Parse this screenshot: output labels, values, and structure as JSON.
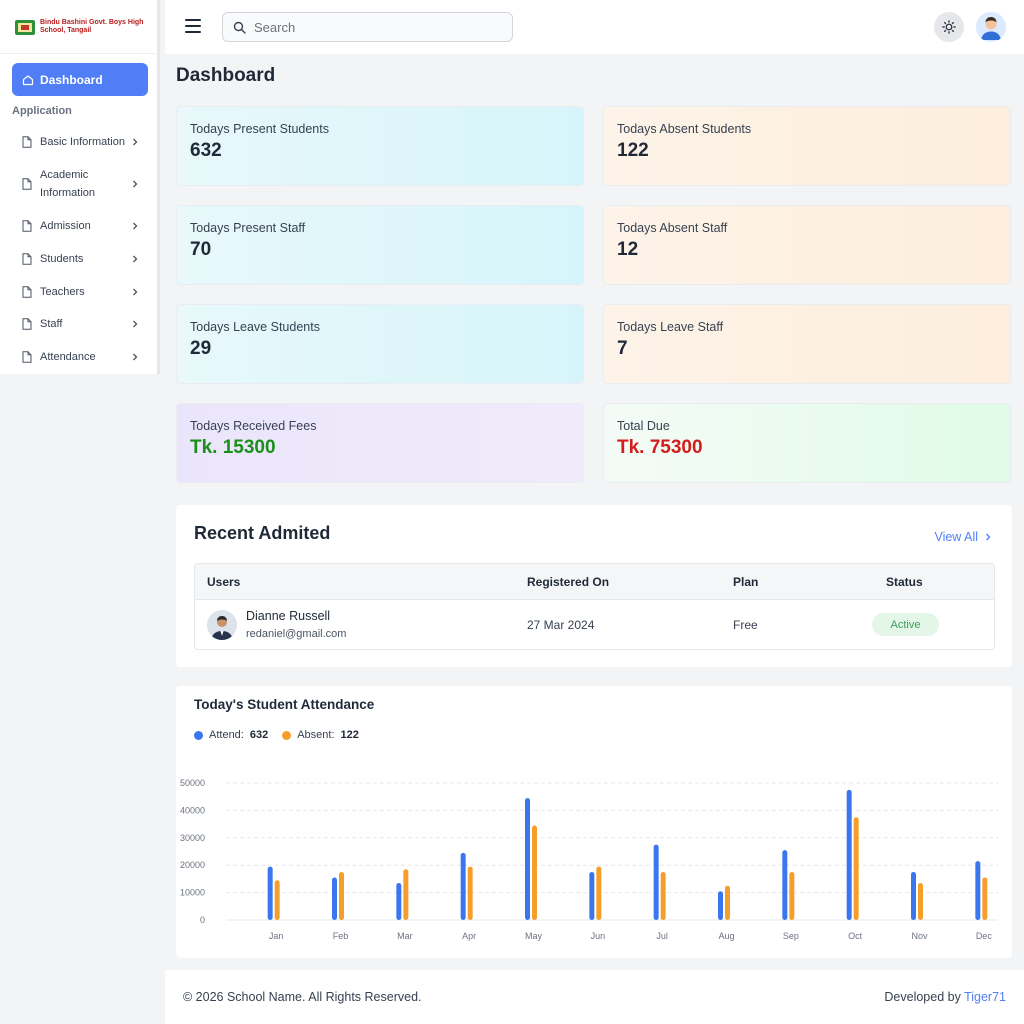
{
  "brand": {
    "school_name": "Bindu Bashini Govt. Boys High School, Tangail"
  },
  "sidebar": {
    "active_item": "Dashboard",
    "section_label": "Application",
    "items": [
      {
        "label": "Basic Information"
      },
      {
        "label": "Academic Information"
      },
      {
        "label": "Admission"
      },
      {
        "label": "Students"
      },
      {
        "label": "Teachers"
      },
      {
        "label": "Staff"
      },
      {
        "label": "Attendance"
      }
    ]
  },
  "header": {
    "search_placeholder": "Search"
  },
  "page_title": "Dashboard",
  "stats": [
    {
      "label": "Todays Present Students",
      "value": "632"
    },
    {
      "label": "Todays Absent Students",
      "value": "122"
    },
    {
      "label": "Todays Present Staff",
      "value": "70"
    },
    {
      "label": "Todays Absent Staff",
      "value": "12"
    },
    {
      "label": "Todays Leave Students",
      "value": "29"
    },
    {
      "label": "Todays Leave Staff",
      "value": "7"
    },
    {
      "label": "Todays Received Fees",
      "value": "Tk. 15300",
      "color": "#1a8f1a"
    },
    {
      "label": "Total Due",
      "value": "Tk. 75300",
      "color": "#d31c1c"
    }
  ],
  "recent": {
    "title": "Recent Admited",
    "view_all": "View All",
    "columns": [
      "Users",
      "Registered On",
      "Plan",
      "Status"
    ],
    "rows": [
      {
        "name": "Dianne Russell",
        "email": "redaniel@gmail.com",
        "registered_on": "27 Mar 2024",
        "plan": "Free",
        "status": "Active"
      }
    ]
  },
  "attendance": {
    "title": "Today's Student Attendance",
    "legend": [
      {
        "label": "Attend:",
        "value": "632",
        "color": "#3b76ef"
      },
      {
        "label": "Absent:",
        "value": "122",
        "color": "#f59e2b"
      }
    ]
  },
  "chart_data": {
    "type": "bar",
    "categories": [
      "Jan",
      "Feb",
      "Mar",
      "Apr",
      "May",
      "Jun",
      "Jul",
      "Aug",
      "Sep",
      "Oct",
      "Nov",
      "Dec"
    ],
    "series": [
      {
        "name": "Attend",
        "color": "#3b76ef",
        "values": [
          19500,
          15500,
          13500,
          24500,
          44500,
          17500,
          27500,
          10500,
          25500,
          47500,
          17500,
          21500
        ]
      },
      {
        "name": "Absent",
        "color": "#f59e2b",
        "values": [
          14500,
          17500,
          18500,
          19500,
          34500,
          19500,
          17500,
          12500,
          17500,
          37500,
          13500,
          15500
        ]
      }
    ],
    "yticks": [
      0,
      10000,
      20000,
      30000,
      40000,
      50000
    ],
    "ylim": [
      0,
      50000
    ],
    "grid": true,
    "legend": "top-left",
    "title": "",
    "xlabel": "",
    "ylabel": ""
  },
  "footer": {
    "copyright": "© 2026 School Name. All Rights Reserved.",
    "developed_by_prefix": "Developed by ",
    "developer": "Tiger71"
  }
}
